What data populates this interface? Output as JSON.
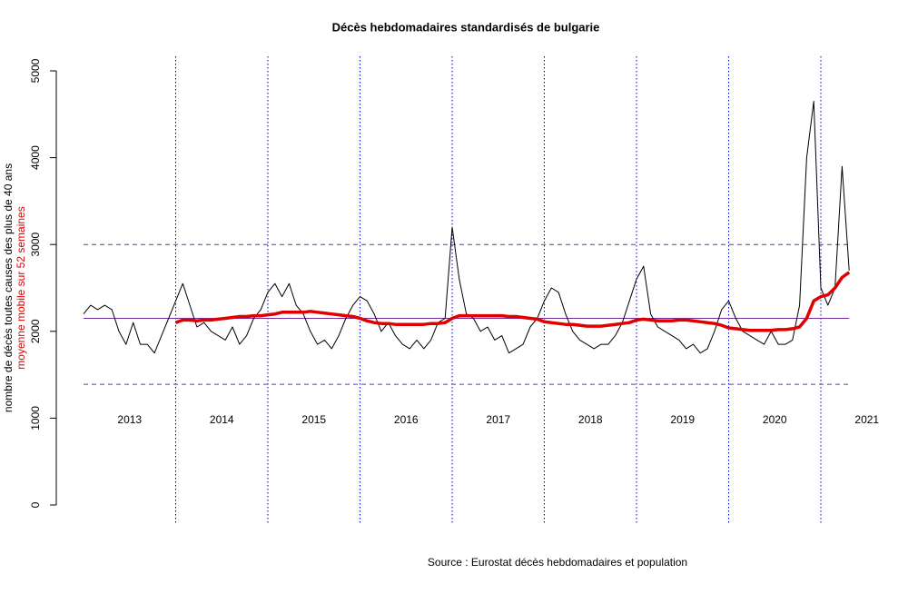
{
  "chart_data": {
    "type": "line",
    "title": "Décès hebdomadaires standardisés de bulgarie",
    "y_label": "nombre de décès toutes causes des plus de 40 ans",
    "y_label_2": "moyenne mobile sur 52 semaines",
    "source": "Source : Eurostat décès hebdomadaires et population",
    "year_labels": [
      "2013",
      "2014",
      "2015",
      "2016",
      "2017",
      "2018",
      "2019",
      "2020",
      "2021"
    ],
    "ylim": [
      0,
      5000
    ],
    "yticks": [
      0,
      1000,
      2000,
      3000,
      4000,
      5000
    ],
    "mean_line": 2150,
    "band_lines": [
      1390,
      3000
    ],
    "line_color": "#7030a0",
    "separator_color": "#0000aa",
    "series": [
      {
        "color": "#000000",
        "values": [
          2200,
          2300,
          2250,
          2300,
          2250,
          2000,
          1850,
          2100,
          1850,
          1850,
          1750,
          1950,
          2150,
          2350,
          2550,
          2300,
          2050,
          2100,
          2000,
          1950,
          1900,
          2050,
          1850,
          1950,
          2150,
          2250,
          2450,
          2550,
          2400,
          2550,
          2300,
          2200,
          2000,
          1850,
          1900,
          1800,
          1950,
          2150,
          2300,
          2400,
          2350,
          2200,
          2000,
          2100,
          1950,
          1850,
          1800,
          1900,
          1800,
          1900,
          2100,
          2150,
          3200,
          2600,
          2200,
          2150,
          2000,
          2050,
          1900,
          1950,
          1750,
          1800,
          1850,
          2050,
          2150,
          2350,
          2500,
          2450,
          2200,
          2000,
          1900,
          1850,
          1800,
          1850,
          1850,
          1950,
          2100,
          2350,
          2600,
          2750,
          2200,
          2050,
          2000,
          1950,
          1900,
          1800,
          1850,
          1750,
          1800,
          2000,
          2250,
          2350,
          2150,
          2000,
          1950,
          1900,
          1850,
          2000,
          1850,
          1850,
          1900,
          2300,
          4000,
          4650,
          2500,
          2300,
          2500,
          3900,
          2700
        ]
      },
      {
        "name": "moyenne mobile sur 52 semaines",
        "color": "#e00000",
        "values": [
          null,
          null,
          null,
          null,
          null,
          null,
          null,
          null,
          null,
          null,
          null,
          null,
          null,
          2100,
          2130,
          2130,
          2120,
          2130,
          2130,
          2140,
          2150,
          2160,
          2170,
          2170,
          2180,
          2180,
          2190,
          2200,
          2220,
          2220,
          2220,
          2220,
          2230,
          2220,
          2210,
          2200,
          2190,
          2180,
          2170,
          2150,
          2120,
          2100,
          2090,
          2090,
          2080,
          2080,
          2080,
          2080,
          2080,
          2090,
          2090,
          2100,
          2150,
          2180,
          2180,
          2180,
          2180,
          2180,
          2180,
          2180,
          2170,
          2170,
          2160,
          2150,
          2140,
          2110,
          2100,
          2090,
          2080,
          2080,
          2070,
          2060,
          2060,
          2060,
          2070,
          2080,
          2090,
          2100,
          2130,
          2140,
          2130,
          2120,
          2120,
          2120,
          2130,
          2130,
          2120,
          2110,
          2100,
          2090,
          2070,
          2040,
          2030,
          2020,
          2010,
          2010,
          2010,
          2010,
          2020,
          2020,
          2030,
          2050,
          2150,
          2350,
          2400,
          2420,
          2500,
          2620,
          2680
        ]
      }
    ]
  }
}
